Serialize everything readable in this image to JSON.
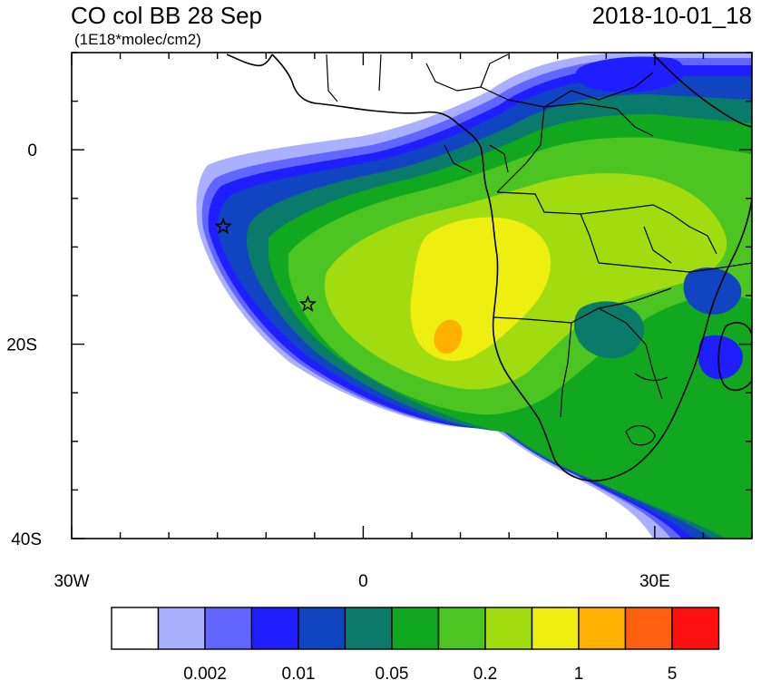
{
  "title": "CO col BB 28 Sep",
  "units": "(1E18*molec/cm2)",
  "datetime": "2018-10-01_18",
  "y_ticks": [
    {
      "lat": 0,
      "label": "0"
    },
    {
      "lat": -20,
      "label": "20S"
    },
    {
      "lat": -40,
      "label": "40S"
    }
  ],
  "x_ticks": [
    {
      "lon": -30,
      "label": "30W"
    },
    {
      "lon": 0,
      "label": "0"
    },
    {
      "lon": 30,
      "label": "30E"
    }
  ],
  "extent": {
    "lon_min": -30,
    "lon_max": 40,
    "lat_min": -40,
    "lat_max": 10
  },
  "legend": {
    "colors": [
      "#ffffff",
      "#aab0ff",
      "#6066ff",
      "#1e1eff",
      "#1144c0",
      "#0a7a6a",
      "#11a820",
      "#4cc422",
      "#a0dc10",
      "#eeee10",
      "#ffb000",
      "#ff6010",
      "#ff1010"
    ],
    "labels": [
      {
        "after_box": 1,
        "text": "0.002"
      },
      {
        "after_box": 3,
        "text": "0.01"
      },
      {
        "after_box": 5,
        "text": "0.05"
      },
      {
        "after_box": 7,
        "text": "0.2"
      },
      {
        "after_box": 9,
        "text": "1"
      },
      {
        "after_box": 11,
        "text": "5"
      }
    ]
  },
  "markers": [
    {
      "name": "star-marker-ascension",
      "lon": -14.4,
      "lat": -7.9
    },
    {
      "name": "star-marker-st-helena",
      "lon": -5.7,
      "lat": -15.9
    }
  ]
}
